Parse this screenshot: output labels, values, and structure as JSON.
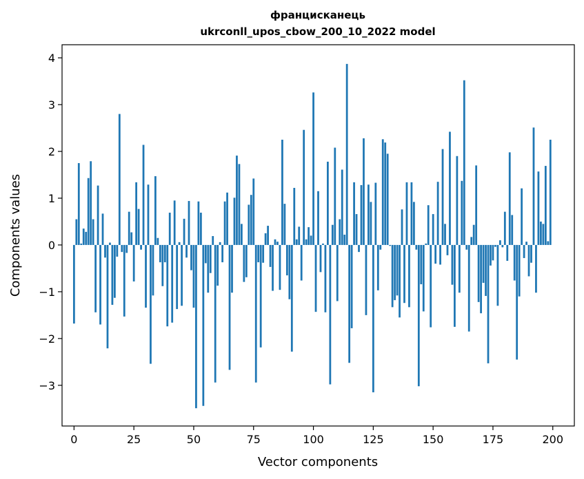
{
  "chart_data": {
    "type": "bar",
    "title": "францисканець",
    "subtitle": "ukrconll_upos_cbow_200_10_2022 model",
    "xlabel": "Vector components",
    "ylabel": "Components values",
    "xlim": [
      -5,
      209
    ],
    "ylim": [
      -3.87,
      4.28
    ],
    "xticks": [
      0,
      25,
      50,
      75,
      100,
      125,
      150,
      175,
      200
    ],
    "yticks": [
      -3,
      -2,
      -1,
      0,
      1,
      2,
      3,
      4
    ],
    "ytick_labels": [
      "−3",
      "−2",
      "−1",
      "0",
      "1",
      "2",
      "3",
      "4"
    ],
    "grid": false,
    "legend": "none",
    "bar_color": "#1f77b4",
    "x": [
      0,
      1,
      2,
      3,
      4,
      5,
      6,
      7,
      8,
      9,
      10,
      11,
      12,
      13,
      14,
      15,
      16,
      17,
      18,
      19,
      20,
      21,
      22,
      23,
      24,
      25,
      26,
      27,
      28,
      29,
      30,
      31,
      32,
      33,
      34,
      35,
      36,
      37,
      38,
      39,
      40,
      41,
      42,
      43,
      44,
      45,
      46,
      47,
      48,
      49,
      50,
      51,
      52,
      53,
      54,
      55,
      56,
      57,
      58,
      59,
      60,
      61,
      62,
      63,
      64,
      65,
      66,
      67,
      68,
      69,
      70,
      71,
      72,
      73,
      74,
      75,
      76,
      77,
      78,
      79,
      80,
      81,
      82,
      83,
      84,
      85,
      86,
      87,
      88,
      89,
      90,
      91,
      92,
      93,
      94,
      95,
      96,
      97,
      98,
      99,
      100,
      101,
      102,
      103,
      104,
      105,
      106,
      107,
      108,
      109,
      110,
      111,
      112,
      113,
      114,
      115,
      116,
      117,
      118,
      119,
      120,
      121,
      122,
      123,
      124,
      125,
      126,
      127,
      128,
      129,
      130,
      131,
      132,
      133,
      134,
      135,
      136,
      137,
      138,
      139,
      140,
      141,
      142,
      143,
      144,
      145,
      146,
      147,
      148,
      149,
      150,
      151,
      152,
      153,
      154,
      155,
      156,
      157,
      158,
      159,
      160,
      161,
      162,
      163,
      164,
      165,
      166,
      167,
      168,
      169,
      170,
      171,
      172,
      173,
      174,
      175,
      176,
      177,
      178,
      179,
      180,
      181,
      182,
      183,
      184,
      185,
      186,
      187,
      188,
      189,
      190,
      191,
      192,
      193,
      194,
      195,
      196,
      197,
      198,
      199
    ],
    "values": [
      -1.68,
      0.55,
      1.75,
      0.03,
      0.35,
      0.28,
      1.43,
      1.79,
      0.55,
      -1.44,
      1.27,
      -1.7,
      0.67,
      -0.27,
      -2.21,
      0.05,
      -1.28,
      -1.13,
      -0.25,
      2.8,
      -0.15,
      -1.53,
      -0.17,
      0.71,
      0.27,
      -0.78,
      1.34,
      0.77,
      -0.1,
      2.14,
      -1.34,
      1.29,
      -2.54,
      -1.08,
      1.47,
      0.15,
      -0.37,
      -0.88,
      -0.37,
      -1.74,
      0.69,
      -1.66,
      0.95,
      -1.37,
      0.06,
      -1.3,
      0.56,
      -0.27,
      0.94,
      -0.54,
      -1.34,
      -3.49,
      0.93,
      0.69,
      -3.44,
      -0.39,
      -1.02,
      -0.6,
      0.19,
      -2.94,
      -0.87,
      0.06,
      -0.37,
      0.93,
      1.12,
      -2.67,
      -1.02,
      1.01,
      1.91,
      1.73,
      0.45,
      -0.79,
      -0.69,
      0.86,
      1.07,
      1.42,
      -2.94,
      -0.37,
      -2.19,
      -0.38,
      0.25,
      0.41,
      -0.47,
      -0.98,
      0.12,
      0.07,
      -0.96,
      2.25,
      0.88,
      -0.65,
      -1.16,
      -2.28,
      1.22,
      0.12,
      0.39,
      -0.76,
      2.46,
      0.12,
      0.38,
      0.2,
      3.26,
      -1.43,
      1.15,
      -0.58,
      0.03,
      -1.44,
      1.78,
      -2.98,
      0.43,
      2.08,
      -1.2,
      0.55,
      1.61,
      0.22,
      3.87,
      -2.52,
      -1.78,
      1.34,
      0.66,
      -0.15,
      1.28,
      2.28,
      -1.5,
      1.29,
      0.92,
      -3.15,
      1.33,
      -0.97,
      -0.1,
      2.26,
      2.19,
      1.95,
      -0.02,
      -1.33,
      -1.18,
      -1.08,
      -1.55,
      0.76,
      -1.24,
      1.34,
      -1.33,
      1.34,
      0.92,
      -0.1,
      -3.02,
      -0.84,
      -1.42,
      0.03,
      0.85,
      -1.76,
      0.66,
      -0.4,
      1.35,
      -0.42,
      2.05,
      0.45,
      -0.22,
      2.42,
      -0.85,
      -1.75,
      1.9,
      -1.02,
      1.37,
      3.52,
      -0.1,
      -1.85,
      0.17,
      0.43,
      1.7,
      -1.22,
      -1.46,
      -0.81,
      -1.09,
      -2.53,
      -0.44,
      -0.33,
      -0.04,
      -1.3,
      0.1,
      -0.05,
      0.71,
      -0.34,
      1.98,
      0.64,
      -0.76,
      -2.45,
      -1.1,
      1.21,
      -0.28,
      0.07,
      -0.67,
      -0.38,
      2.51,
      -1.02,
      1.57,
      0.5,
      0.45,
      1.69,
      0.08,
      2.25
    ]
  }
}
